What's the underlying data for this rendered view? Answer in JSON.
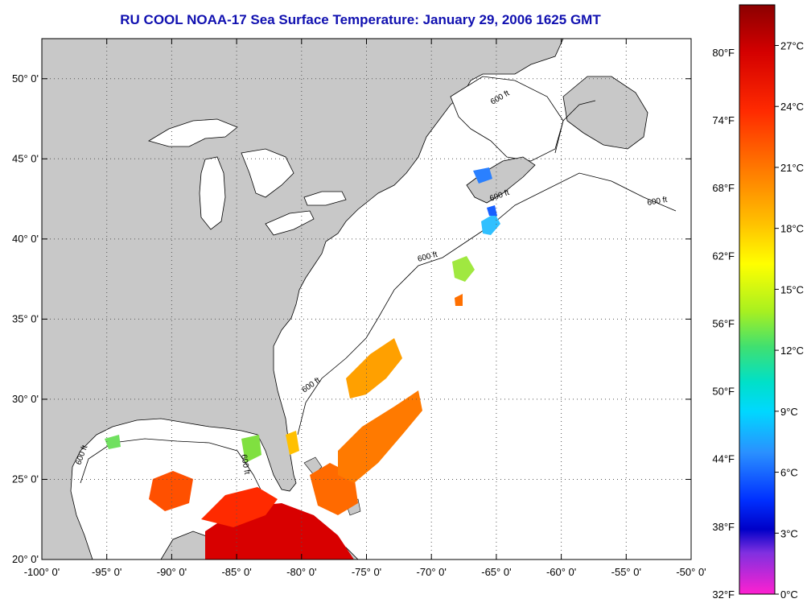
{
  "title": "RU COOL  NOAA-17  Sea Surface Temperature:  January 29, 2006 1625 GMT",
  "colors": {
    "land": "#c8c8c8",
    "ocean": "#ffffff",
    "title": "#1010b0",
    "grid": "#555555"
  },
  "map": {
    "lon_range": [
      -100,
      -50
    ],
    "lat_range": [
      20,
      52.5
    ],
    "lon_labels": [
      "-100° 0'",
      "-95° 0'",
      "-90° 0'",
      "-85° 0'",
      "-80° 0'",
      "-75° 0'",
      "-70° 0'",
      "-65° 0'",
      "-60° 0'",
      "-55° 0'",
      "-50° 0'"
    ],
    "lon_values": [
      -100,
      -95,
      -90,
      -85,
      -80,
      -75,
      -70,
      -65,
      -60,
      -55,
      -50
    ],
    "lat_labels": [
      "20° 0'",
      "25° 0'",
      "30° 0'",
      "35° 0'",
      "40° 0'",
      "45° 0'",
      "50° 0'"
    ],
    "lat_values": [
      20,
      25,
      30,
      35,
      40,
      45,
      50
    ],
    "isobath_label": "600 ft"
  },
  "colorbar": {
    "range_c": [
      0,
      29
    ],
    "f_labels": [
      "32°F",
      "38°F",
      "44°F",
      "50°F",
      "56°F",
      "62°F",
      "68°F",
      "74°F",
      "80°F"
    ],
    "f_values": [
      32,
      38,
      44,
      50,
      56,
      62,
      68,
      74,
      80
    ],
    "c_labels": [
      "0°C",
      "3°C",
      "6°C",
      "9°C",
      "12°C",
      "15°C",
      "18°C",
      "21°C",
      "24°C",
      "27°C"
    ],
    "c_values": [
      0,
      3,
      6,
      9,
      12,
      15,
      18,
      21,
      24,
      27
    ]
  }
}
